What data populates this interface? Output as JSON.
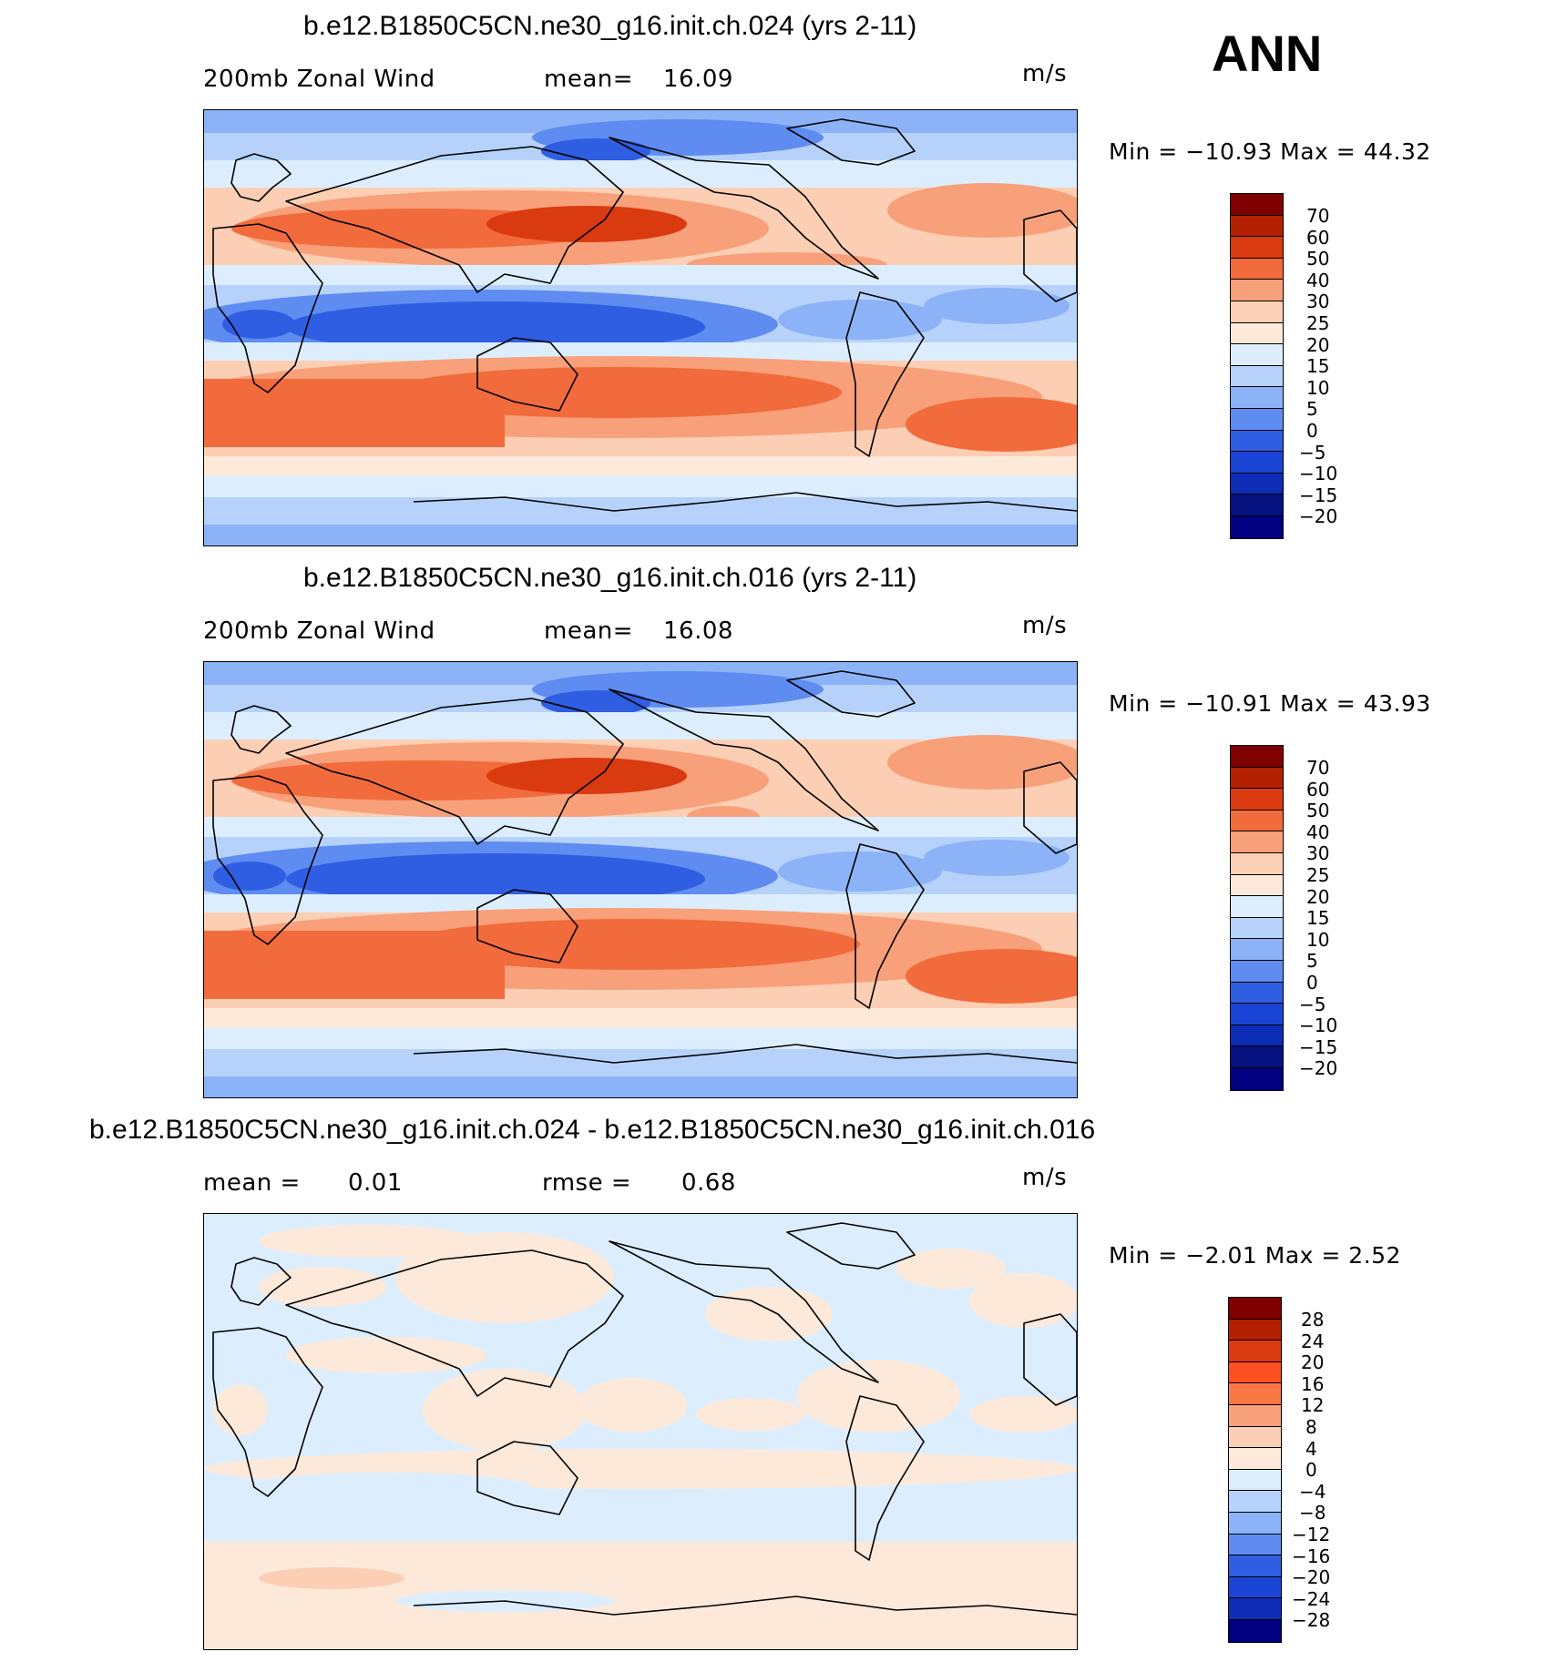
{
  "top_label": "ANN",
  "panels": [
    {
      "title": "b.e12.B1850C5CN.ne30_g16.init.ch.024 (yrs 2-11)",
      "left_label": "200mb  Zonal Wind",
      "stat_label": "mean=",
      "stat_value": "16.09",
      "units": "m/s",
      "min_max": "Min  =  −10.93  Max  =    44.32",
      "colorbar_ticks": [
        "70",
        "60",
        "50",
        "40",
        "30",
        "25",
        "20",
        "15",
        "10",
        "5",
        "0",
        "−5",
        "−10",
        "−15",
        "−20"
      ]
    },
    {
      "title": "b.e12.B1850C5CN.ne30_g16.init.ch.016 (yrs 2-11)",
      "left_label": "200mb  Zonal Wind",
      "stat_label": "mean=",
      "stat_value": "16.08",
      "units": "m/s",
      "min_max": "Min  =  −10.91  Max  =    43.93",
      "colorbar_ticks": [
        "70",
        "60",
        "50",
        "40",
        "30",
        "25",
        "20",
        "15",
        "10",
        "5",
        "0",
        "−5",
        "−10",
        "−15",
        "−20"
      ]
    },
    {
      "title": "b.e12.B1850C5CN.ne30_g16.init.ch.024 - b.e12.B1850C5CN.ne30_g16.init.ch.016",
      "left_label": "mean =",
      "left_value": "0.01",
      "stat_label": "rmse =",
      "stat_value": "0.68",
      "units": "m/s",
      "min_max": "Min  =    −2.01  Max  =      2.52",
      "colorbar_ticks": [
        "28",
        "24",
        "20",
        "16",
        "12",
        "8",
        "4",
        "0",
        "−4",
        "−8",
        "−12",
        "−16",
        "−20",
        "−24",
        "−28"
      ]
    }
  ],
  "colors": {
    "field_scale": [
      "#800000",
      "#b22000",
      "#da3a10",
      "#f26b3c",
      "#f8a07a",
      "#fcd0b4",
      "#fde9da",
      "#dceefe",
      "#b6d2fb",
      "#8cb3f7",
      "#5e8cf1",
      "#2f5ee2",
      "#1a44d6",
      "#0e2db6",
      "#05127f",
      "#000080"
    ],
    "diff_scale": [
      "#800000",
      "#b22000",
      "#da3a10",
      "#ff5022",
      "#fb7846",
      "#f8a07a",
      "#fccfb4",
      "#fde9da",
      "#dceefe",
      "#b6d2fb",
      "#8cb3f7",
      "#5e8cf1",
      "#2f5ee2",
      "#1a44d6",
      "#0e2db6",
      "#000080"
    ]
  }
}
